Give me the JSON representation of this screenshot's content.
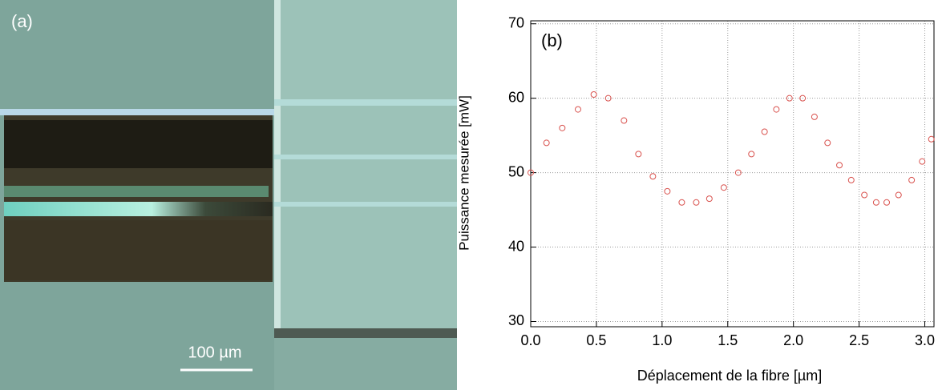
{
  "panel_a": {
    "label": "(a)",
    "scale_bar": "100 µm"
  },
  "chart_data": {
    "type": "scatter",
    "panel_label": "(b)",
    "x_label": "Déplacement de la fibre [µm]",
    "y_label": "Puissance mesurée [mW]",
    "x": [
      0.0,
      0.12,
      0.24,
      0.36,
      0.48,
      0.59,
      0.71,
      0.82,
      0.93,
      1.04,
      1.15,
      1.26,
      1.36,
      1.47,
      1.58,
      1.68,
      1.78,
      1.87,
      1.97,
      2.07,
      2.16,
      2.26,
      2.35,
      2.44,
      2.54,
      2.63,
      2.71,
      2.8,
      2.9,
      2.98,
      3.05
    ],
    "values": [
      50,
      54,
      56,
      58.5,
      60.5,
      60,
      57,
      52.5,
      49.5,
      47.5,
      46,
      46,
      46.5,
      48,
      50,
      52.5,
      55.5,
      58.5,
      60,
      60,
      57.5,
      54,
      51,
      49,
      47,
      46,
      46,
      47,
      49,
      51.5,
      54.5
    ],
    "color": "#d9534f",
    "xlim": [
      0,
      3.07
    ],
    "ylim": [
      29.3,
      70.4
    ],
    "xticks": [
      {
        "value": 0,
        "label": "0.0"
      },
      0.5,
      {
        "value": 1,
        "label": "1.0"
      },
      1.5,
      {
        "value": 2,
        "label": "2.0"
      },
      2.5,
      {
        "value": 3,
        "label": "3.0"
      }
    ],
    "yticks": [
      30,
      40,
      50,
      60,
      70
    ],
    "grid": true
  }
}
